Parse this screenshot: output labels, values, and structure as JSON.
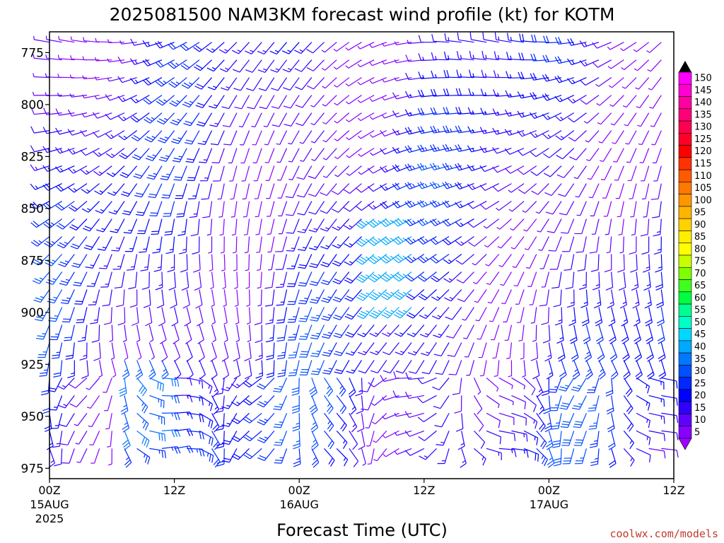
{
  "chart_data": {
    "type": "wind-barb-time-height",
    "title": "2025081500 NAM3KM forecast wind profile (kt) for KOTM",
    "xlabel": "Forecast Time (UTC)",
    "ylabel": "",
    "credit": "coolwx.com/models",
    "y_ticks": [
      775,
      800,
      825,
      850,
      875,
      900,
      925,
      950,
      975
    ],
    "ylim": [
      980,
      765
    ],
    "x_ticks": [
      {
        "hour": 0,
        "label": "00Z",
        "sub1": "15AUG",
        "sub2": "2025"
      },
      {
        "hour": 12,
        "label": "12Z",
        "sub1": "",
        "sub2": ""
      },
      {
        "hour": 24,
        "label": "00Z",
        "sub1": "16AUG",
        "sub2": ""
      },
      {
        "hour": 36,
        "label": "12Z",
        "sub1": "",
        "sub2": ""
      },
      {
        "hour": 48,
        "label": "00Z",
        "sub1": "17AUG",
        "sub2": ""
      },
      {
        "hour": 60,
        "label": "12Z",
        "sub1": "",
        "sub2": ""
      }
    ],
    "xlim": [
      0,
      60
    ],
    "colorbar": {
      "values": [
        150,
        145,
        140,
        135,
        130,
        125,
        120,
        115,
        110,
        105,
        100,
        95,
        90,
        85,
        80,
        75,
        70,
        65,
        60,
        55,
        50,
        45,
        40,
        35,
        30,
        25,
        20,
        15,
        10,
        5
      ],
      "colors": [
        "#ff00ff",
        "#ff00d0",
        "#ff00a0",
        "#ff0078",
        "#ff0050",
        "#ff0028",
        "#ff0000",
        "#ff3300",
        "#ff5a00",
        "#ff7800",
        "#ff9600",
        "#ffb400",
        "#ffd200",
        "#ffee00",
        "#ffff00",
        "#c8ff00",
        "#80ff00",
        "#40ff20",
        "#00ff40",
        "#00ff90",
        "#00ffc8",
        "#00d8ff",
        "#00a8ff",
        "#0078ff",
        "#0050ff",
        "#0028ff",
        "#0000ff",
        "#3000ff",
        "#6000ff",
        "#8800ff"
      ],
      "top_arrow_color": "#000000",
      "bottom_arrow_color": "#a000ff"
    },
    "terrain_color": "#a0522d",
    "terrain_pressure": 982
  }
}
